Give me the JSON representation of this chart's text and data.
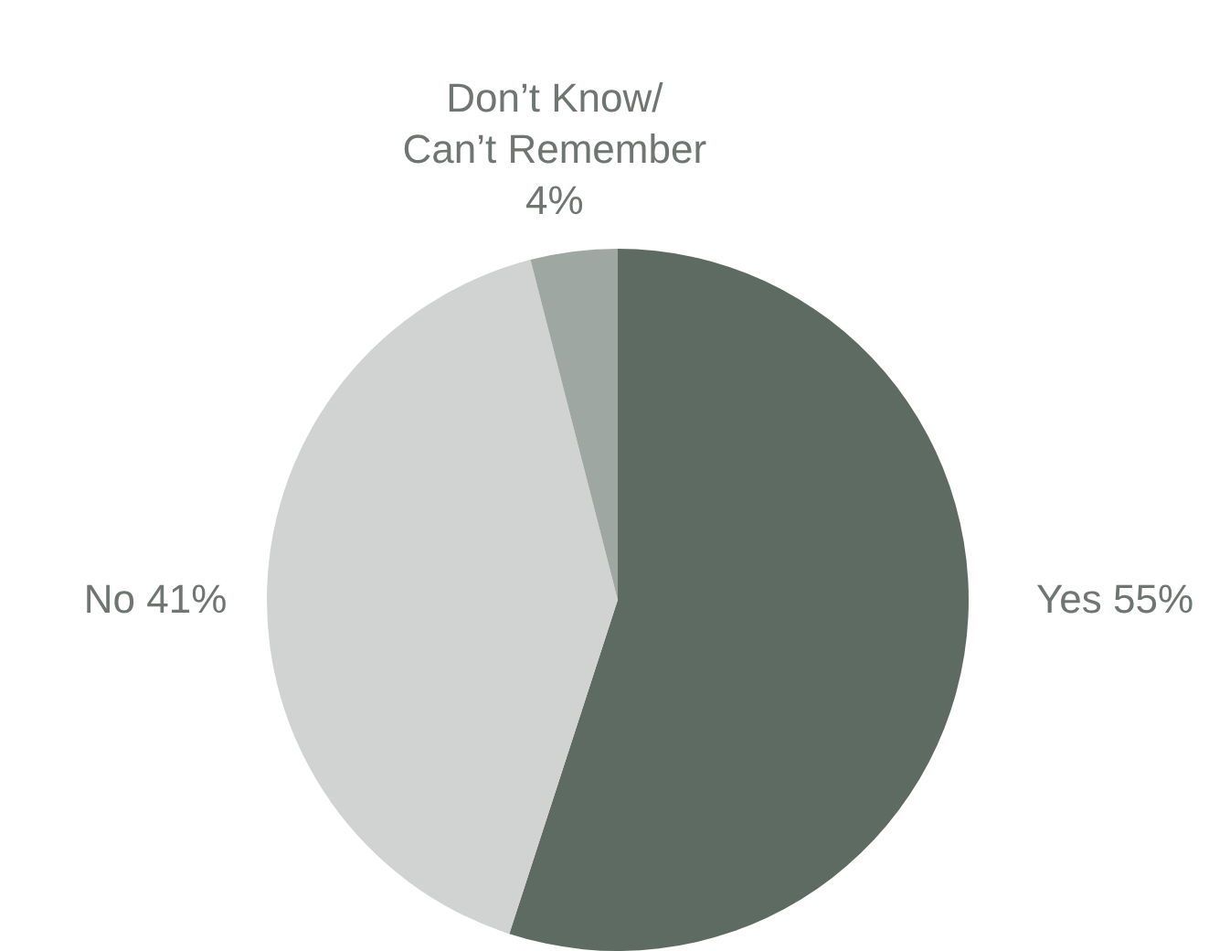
{
  "chart_data": {
    "type": "pie",
    "categories": [
      "Yes",
      "No",
      "Don’t Know/ Can’t Remember"
    ],
    "values": [
      55,
      41,
      4
    ],
    "value_labels": [
      "55%",
      "41%",
      "4%"
    ],
    "colors": [
      "#5d6b62",
      "#d0d3d1",
      "#9ea7a2"
    ]
  }
}
